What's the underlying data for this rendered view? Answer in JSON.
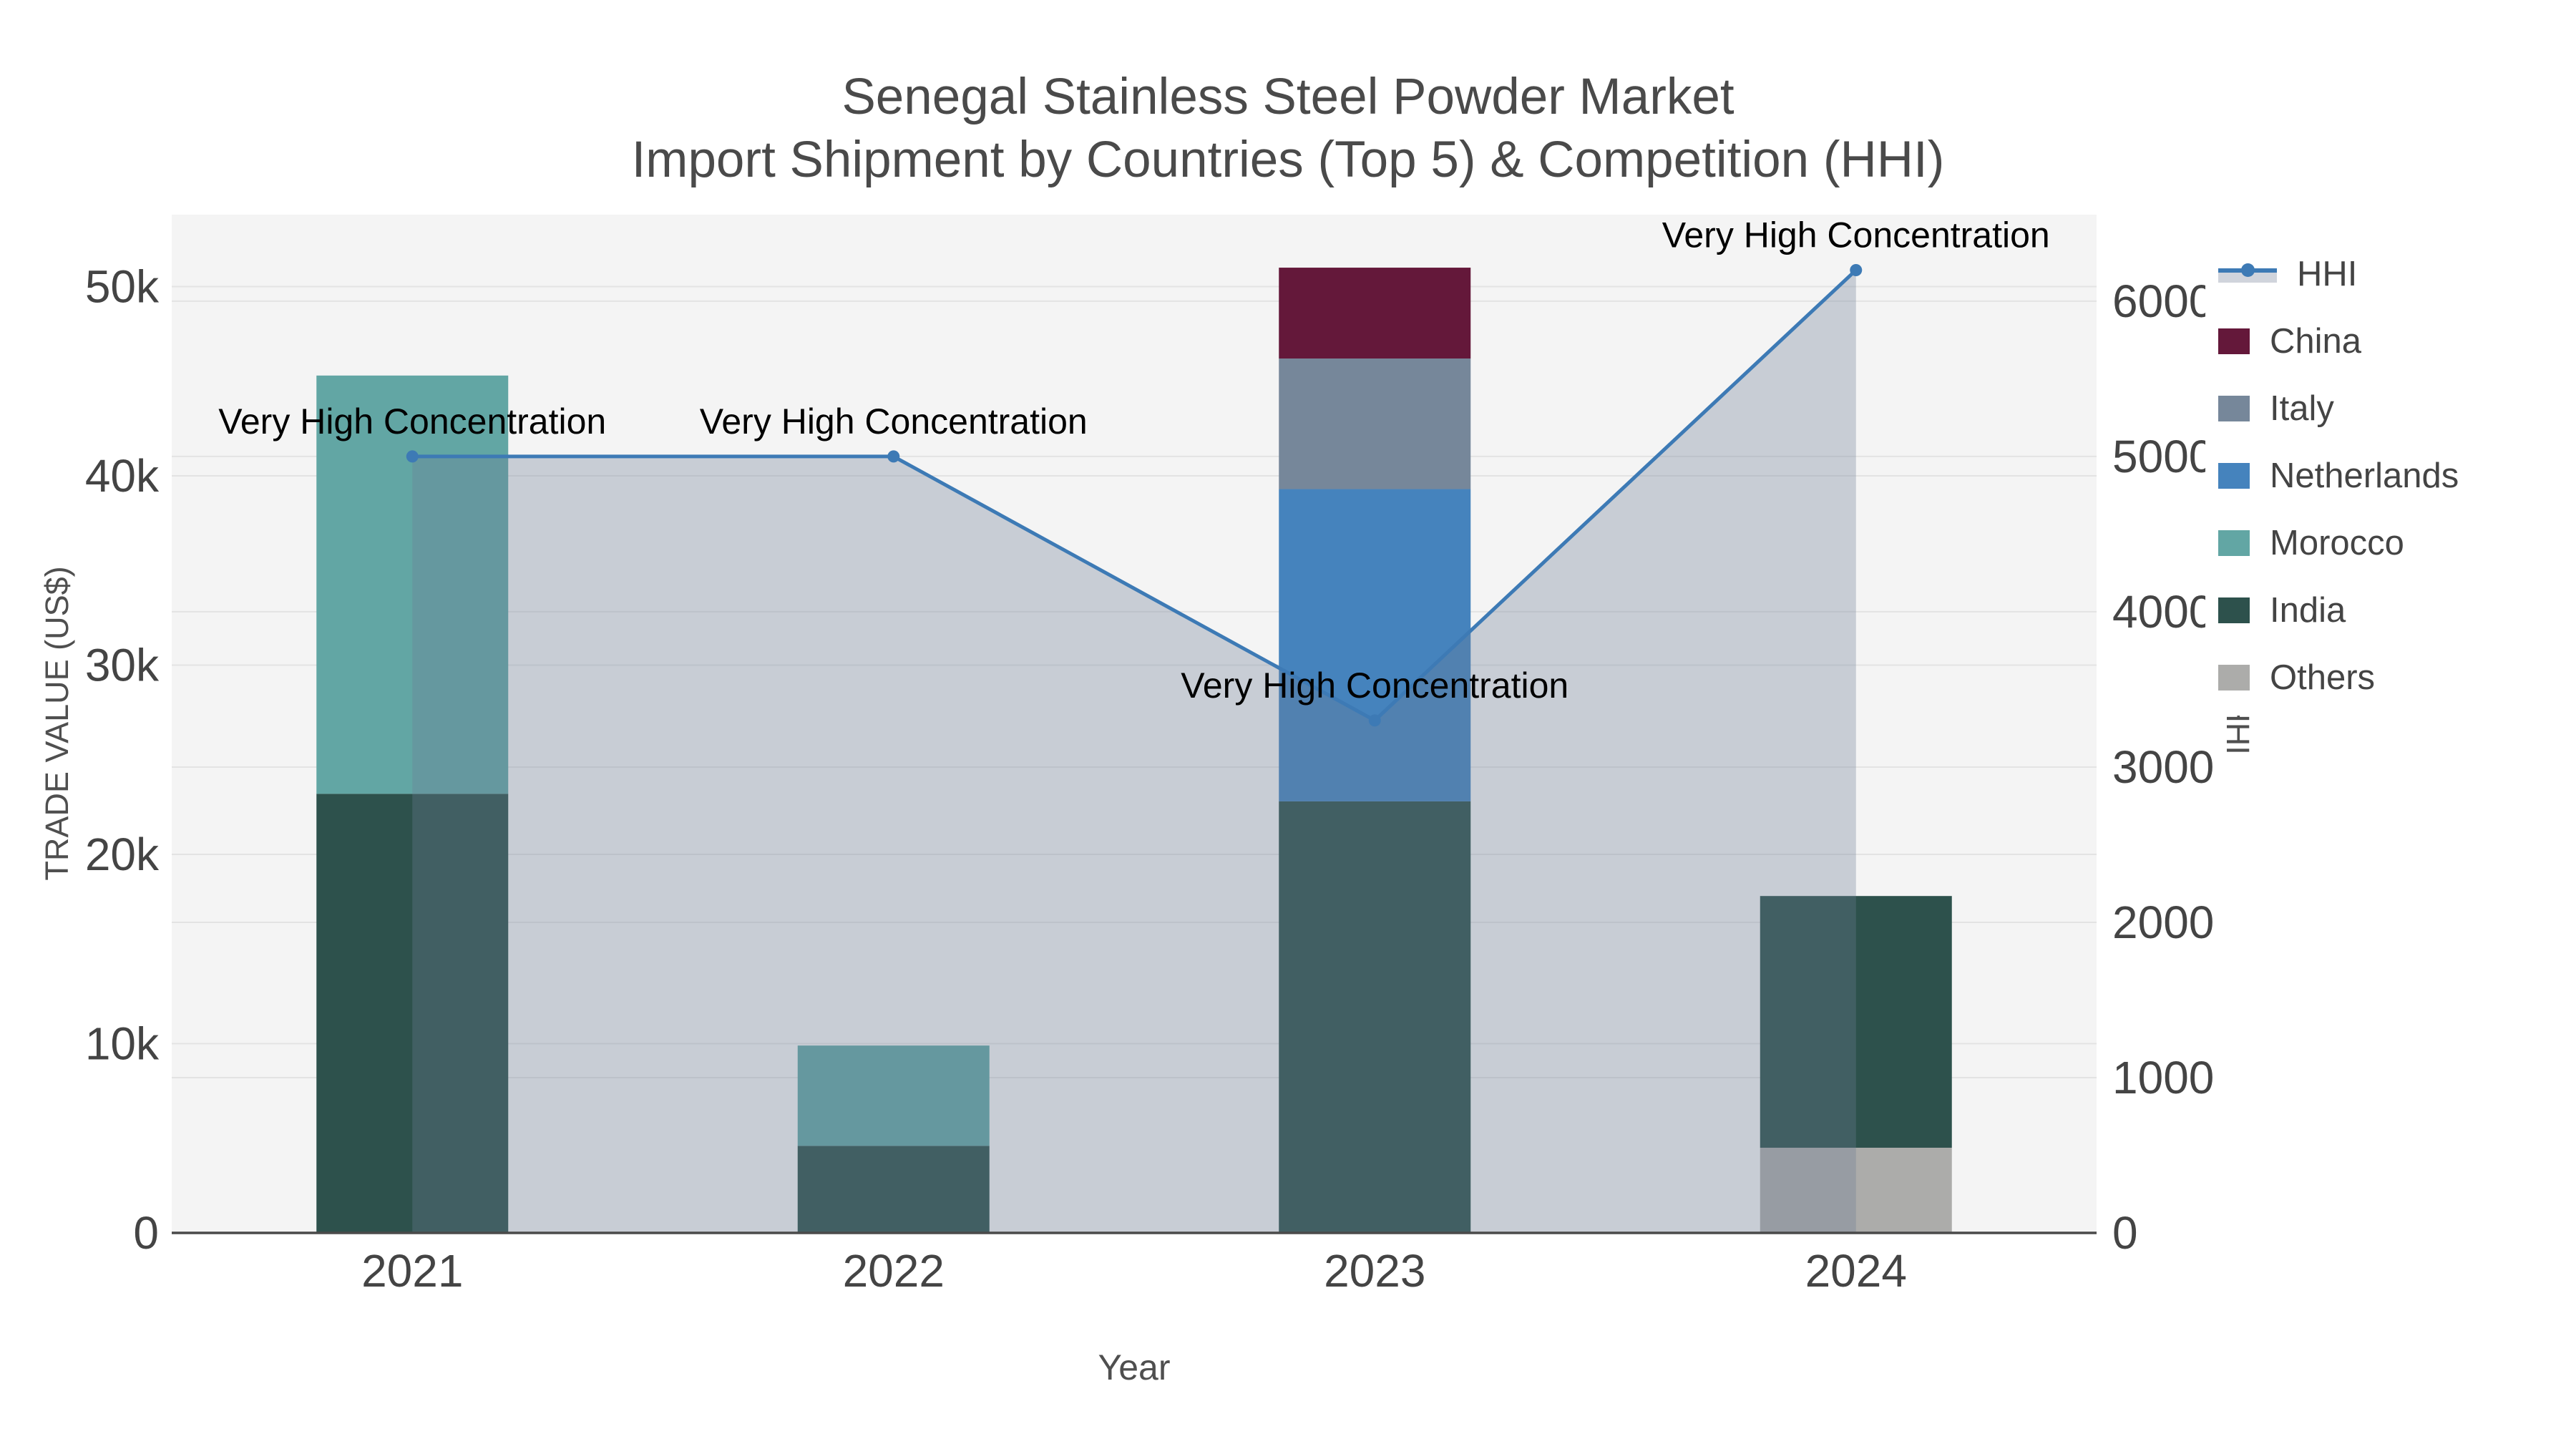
{
  "title": {
    "line1": "Senegal Stainless Steel Powder Market",
    "line2": "Import Shipment by Countries (Top 5) & Competition (HHI)"
  },
  "axes": {
    "x": {
      "label": "Year",
      "categories": [
        "2021",
        "2022",
        "2023",
        "2024"
      ]
    },
    "y_left": {
      "label": "TRADE VALUE (US$)",
      "ticks": [
        {
          "label": "0",
          "value": 0
        },
        {
          "label": "10k",
          "value": 10000
        },
        {
          "label": "20k",
          "value": 20000
        },
        {
          "label": "30k",
          "value": 30000
        },
        {
          "label": "40k",
          "value": 40000
        },
        {
          "label": "50k",
          "value": 50000
        }
      ],
      "range": [
        0,
        53800
      ]
    },
    "y_right": {
      "label": "HHI",
      "ticks": [
        {
          "label": "0",
          "value": 0
        },
        {
          "label": "1000",
          "value": 1000
        },
        {
          "label": "2000",
          "value": 2000
        },
        {
          "label": "3000",
          "value": 3000
        },
        {
          "label": "4000",
          "value": 4000
        },
        {
          "label": "5000",
          "value": 5000
        },
        {
          "label": "6000",
          "value": 6000
        }
      ],
      "range": [
        0,
        6557
      ]
    }
  },
  "legend": {
    "items": [
      {
        "label": "HHI",
        "type": "line",
        "color": "#3d7ab5",
        "band": "#d0d4dc"
      },
      {
        "label": "China",
        "type": "swatch",
        "color": "#64183a"
      },
      {
        "label": "Italy",
        "type": "swatch",
        "color": "#76879a"
      },
      {
        "label": "Netherlands",
        "type": "swatch",
        "color": "#4583bd"
      },
      {
        "label": "Morocco",
        "type": "swatch",
        "color": "#62a6a4"
      },
      {
        "label": "India",
        "type": "swatch",
        "color": "#2d514c"
      },
      {
        "label": "Others",
        "type": "swatch",
        "color": "#acacaa"
      }
    ]
  },
  "annotations": [
    {
      "text": "Very High Concentration",
      "category": "2021"
    },
    {
      "text": "Very High Concentration",
      "category": "2022"
    },
    {
      "text": "Very High Concentration",
      "category": "2023"
    },
    {
      "text": "Very High Concentration",
      "category": "2024"
    }
  ],
  "colors": {
    "plot_background": "#f4f4f4",
    "gridline": "#e3e3e3",
    "axis_line": "#4a4a4a",
    "hhi_line": "#3d7ab5",
    "hhi_fill": "rgba(108,123,148,0.32)"
  },
  "chart_data": [
    {
      "type": "bar",
      "stacked": true,
      "title": "Import Shipment by Countries (Top 5)",
      "xlabel": "Year",
      "ylabel": "TRADE VALUE (US$)",
      "ylim": [
        0,
        53800
      ],
      "categories": [
        "2021",
        "2022",
        "2023",
        "2024"
      ],
      "series": [
        {
          "name": "Others",
          "color": "#acacaa",
          "values": [
            0,
            0,
            0,
            4500
          ]
        },
        {
          "name": "India",
          "color": "#2d514c",
          "values": [
            23200,
            4600,
            22800,
            13300
          ]
        },
        {
          "name": "Morocco",
          "color": "#62a6a4",
          "values": [
            22100,
            5300,
            0,
            0
          ]
        },
        {
          "name": "Netherlands",
          "color": "#4583bd",
          "values": [
            0,
            0,
            16500,
            0
          ]
        },
        {
          "name": "Italy",
          "color": "#76879a",
          "values": [
            0,
            0,
            6900,
            0
          ]
        },
        {
          "name": "China",
          "color": "#64183a",
          "values": [
            0,
            0,
            4800,
            0
          ]
        }
      ],
      "legend_position": "right"
    },
    {
      "type": "line",
      "name": "HHI",
      "yaxis": "right",
      "ylabel": "HHI",
      "ylim": [
        0,
        6557
      ],
      "categories": [
        "2021",
        "2022",
        "2023",
        "2024"
      ],
      "values": [
        5000,
        5000,
        3300,
        6200
      ],
      "point_annotations": [
        "Very High Concentration",
        "Very High Concentration",
        "Very High Concentration",
        "Very High Concentration"
      ],
      "line_color": "#3d7ab5",
      "fill": "tozeroy",
      "fill_color": "rgba(108,123,148,0.32)",
      "markers": true
    }
  ]
}
